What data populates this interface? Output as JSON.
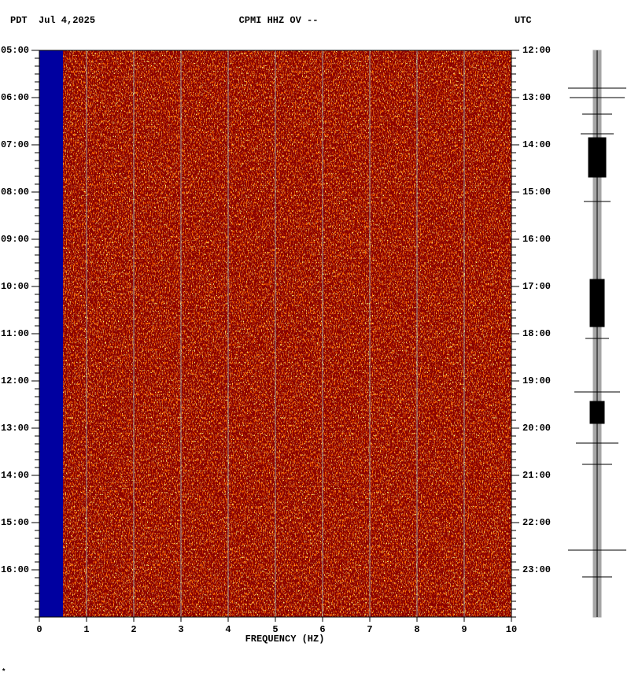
{
  "chart_data": {
    "type": "spectrogram",
    "title": "CPMI HHZ OV --",
    "left_label": "PDT  Jul 4,2025",
    "right_label": "UTC",
    "xlabel": "FREQUENCY (HZ)",
    "footnote": "*",
    "xlim": [
      0,
      10
    ],
    "xticks": [
      0,
      1,
      2,
      3,
      4,
      5,
      6,
      7,
      8,
      9,
      10
    ],
    "ylim": [
      17,
      5
    ],
    "yticks": [
      {
        "value": 5,
        "label": "05:00"
      },
      {
        "value": 6,
        "label": "06:00"
      },
      {
        "value": 7,
        "label": "07:00"
      },
      {
        "value": 8,
        "label": "08:00"
      },
      {
        "value": 9,
        "label": "09:00"
      },
      {
        "value": 10,
        "label": "10:00"
      },
      {
        "value": 11,
        "label": "11:00"
      },
      {
        "value": 12,
        "label": "12:00"
      },
      {
        "value": 13,
        "label": "13:00"
      },
      {
        "value": 14,
        "label": "14:00"
      },
      {
        "value": 15,
        "label": "15:00"
      },
      {
        "value": 16,
        "label": "16:00"
      }
    ],
    "y2lim": [
      24,
      12
    ],
    "y2ticks": [
      {
        "value": 12,
        "label": "12:00"
      },
      {
        "value": 13,
        "label": "13:00"
      },
      {
        "value": 14,
        "label": "14:00"
      },
      {
        "value": 15,
        "label": "15:00"
      },
      {
        "value": 16,
        "label": "16:00"
      },
      {
        "value": 17,
        "label": "17:00"
      },
      {
        "value": 18,
        "label": "18:00"
      },
      {
        "value": 19,
        "label": "19:00"
      },
      {
        "value": 20,
        "label": "20:00"
      },
      {
        "value": 21,
        "label": "21:00"
      },
      {
        "value": 22,
        "label": "22:00"
      },
      {
        "value": 23,
        "label": "23:00"
      }
    ],
    "grid": true,
    "background_color": "#8b0000",
    "masked_band": [
      0,
      0.5
    ],
    "masked_color": "#0000a0"
  }
}
